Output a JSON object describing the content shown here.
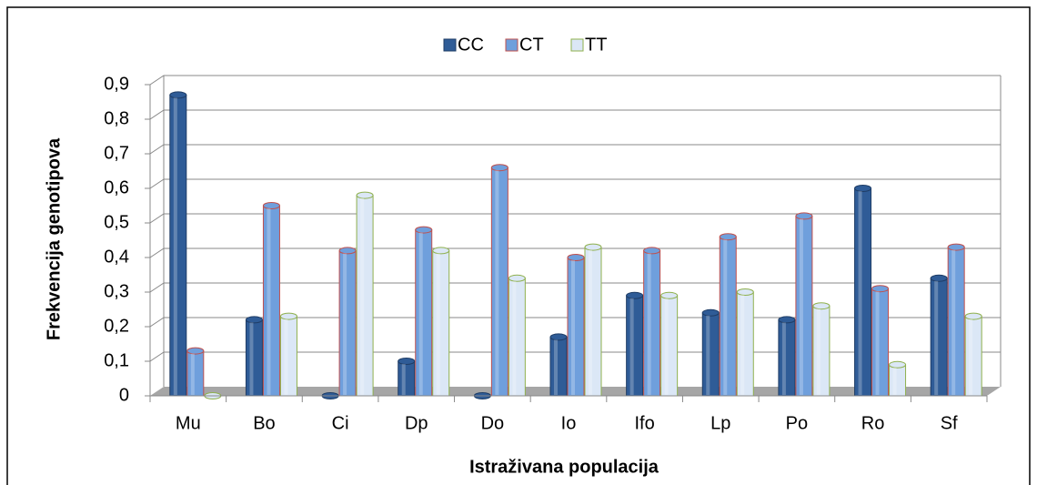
{
  "chart_data": {
    "type": "bar",
    "xlabel": "Istraživana populacija",
    "ylabel": "Frekvencija genotipova",
    "categories": [
      "Mu",
      "Bo",
      "Ci",
      "Dp",
      "Do",
      "Io",
      "Ifo",
      "Lp",
      "Po",
      "Ro",
      "Sf"
    ],
    "series": [
      {
        "name": "CC",
        "color": "#2f5c97",
        "edgecolor": "#1f3d66",
        "values": [
          0.87,
          0.22,
          0,
          0.1,
          0,
          0.17,
          0.29,
          0.24,
          0.22,
          0.6,
          0.34
        ]
      },
      {
        "name": "CT",
        "color": "#6f9fdc",
        "edgecolor": "#c0504d",
        "values": [
          0.13,
          0.55,
          0.42,
          0.48,
          0.66,
          0.4,
          0.42,
          0.46,
          0.52,
          0.31,
          0.43
        ]
      },
      {
        "name": "TT",
        "color": "#dbe7f6",
        "edgecolor": "#8fb04e",
        "values": [
          0,
          0.23,
          0.58,
          0.42,
          0.34,
          0.43,
          0.29,
          0.3,
          0.26,
          0.09,
          0.23
        ]
      }
    ],
    "ylim": [
      0,
      0.9
    ],
    "yticks": [
      0,
      {
        "value": 0.1,
        "label": "0,1"
      },
      {
        "value": 0.2,
        "label": "0,2"
      },
      {
        "value": 0.3,
        "label": "0,3"
      },
      {
        "value": 0.4,
        "label": "0,4"
      },
      {
        "value": 0.5,
        "label": "0,5"
      },
      {
        "value": 0.6,
        "label": "0,6"
      },
      {
        "value": 0.7,
        "label": "0,7"
      },
      {
        "value": 0.8,
        "label": "0,8"
      },
      {
        "value": 0.9,
        "label": "0,9"
      }
    ],
    "grid": true,
    "legend": "top"
  }
}
